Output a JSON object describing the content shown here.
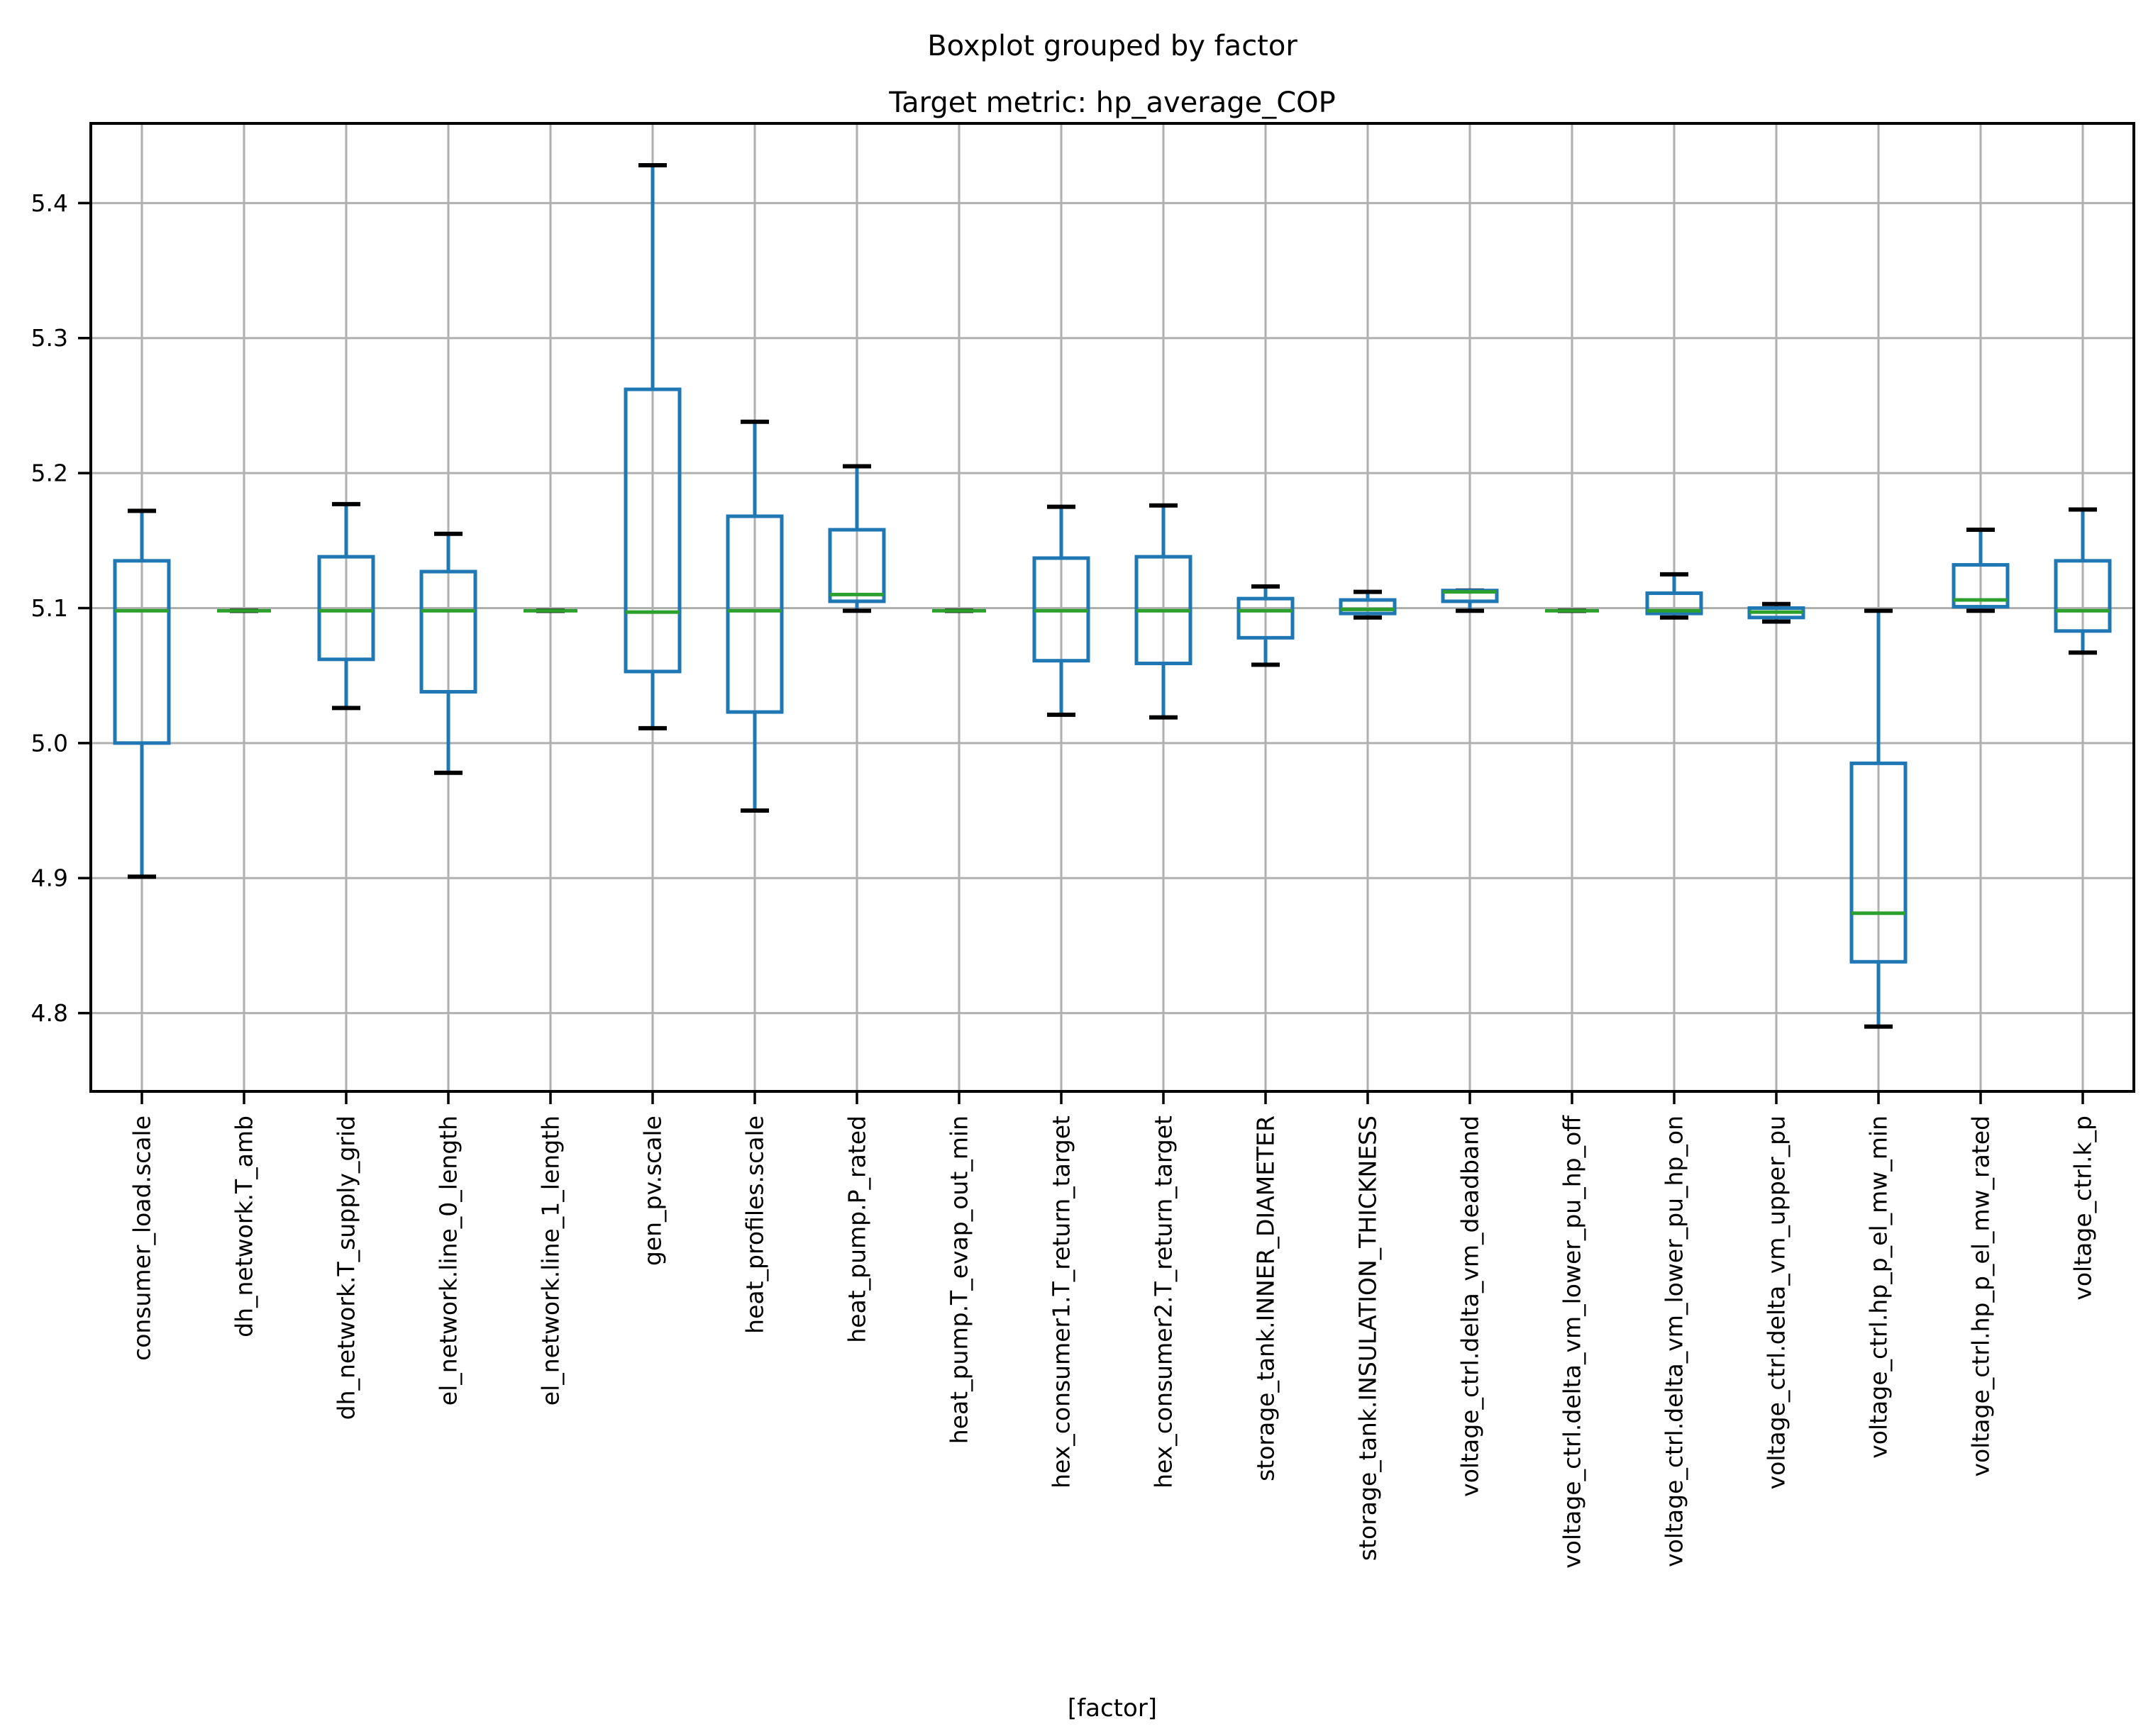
{
  "chart": {
    "suptitle": "Boxplot grouped by factor",
    "title": "Target metric: hp_average_COP",
    "xlabel": "[factor]"
  },
  "colors": {
    "box": "#1f77b4",
    "median": "#2ca02c",
    "cap": "#000000",
    "whisker": "#1f77b4",
    "grid": "#b0b0b0",
    "spine": "#000000",
    "background": "#ffffff"
  },
  "chart_data": {
    "type": "boxplot",
    "title": "Boxplot grouped by factor",
    "subtitle": "Target metric: hp_average_COP",
    "xlabel": "[factor]",
    "ylabel": "",
    "grid": true,
    "ylim": [
      4.742,
      5.459
    ],
    "yticks": [
      4.8,
      4.9,
      5.0,
      5.1,
      5.2,
      5.3,
      5.4
    ],
    "categories": [
      "consumer_load.scale",
      "dh_network.T_amb",
      "dh_network.T_supply_grid",
      "el_network.line_0_length",
      "el_network.line_1_length",
      "gen_pv.scale",
      "heat_profiles.scale",
      "heat_pump.P_rated",
      "heat_pump.T_evap_out_min",
      "hex_consumer1.T_return_target",
      "hex_consumer2.T_return_target",
      "storage_tank.INNER_DIAMETER",
      "storage_tank.INSULATION_THICKNESS",
      "voltage_ctrl.delta_vm_deadband",
      "voltage_ctrl.delta_vm_lower_pu_hp_off",
      "voltage_ctrl.delta_vm_lower_pu_hp_on",
      "voltage_ctrl.delta_vm_upper_pu",
      "voltage_ctrl.hp_p_el_mw_min",
      "voltage_ctrl.hp_p_el_mw_rated",
      "voltage_ctrl.k_p"
    ],
    "boxes": [
      {
        "label": "consumer_load.scale",
        "whislo": 4.901,
        "q1": 5.0,
        "med": 5.098,
        "q3": 5.135,
        "whishi": 5.172
      },
      {
        "label": "dh_network.T_amb",
        "whislo": 5.098,
        "q1": 5.098,
        "med": 5.098,
        "q3": 5.098,
        "whishi": 5.098
      },
      {
        "label": "dh_network.T_supply_grid",
        "whislo": 5.026,
        "q1": 5.062,
        "med": 5.098,
        "q3": 5.138,
        "whishi": 5.177
      },
      {
        "label": "el_network.line_0_length",
        "whislo": 4.978,
        "q1": 5.038,
        "med": 5.098,
        "q3": 5.127,
        "whishi": 5.155
      },
      {
        "label": "el_network.line_1_length",
        "whislo": 5.098,
        "q1": 5.098,
        "med": 5.098,
        "q3": 5.098,
        "whishi": 5.098
      },
      {
        "label": "gen_pv.scale",
        "whislo": 5.011,
        "q1": 5.053,
        "med": 5.097,
        "q3": 5.262,
        "whishi": 5.428
      },
      {
        "label": "heat_profiles.scale",
        "whislo": 4.95,
        "q1": 5.023,
        "med": 5.098,
        "q3": 5.168,
        "whishi": 5.238
      },
      {
        "label": "heat_pump.P_rated",
        "whislo": 5.098,
        "q1": 5.105,
        "med": 5.11,
        "q3": 5.158,
        "whishi": 5.205
      },
      {
        "label": "heat_pump.T_evap_out_min",
        "whislo": 5.098,
        "q1": 5.098,
        "med": 5.098,
        "q3": 5.098,
        "whishi": 5.098
      },
      {
        "label": "hex_consumer1.T_return_target",
        "whislo": 5.021,
        "q1": 5.061,
        "med": 5.098,
        "q3": 5.137,
        "whishi": 5.175
      },
      {
        "label": "hex_consumer2.T_return_target",
        "whislo": 5.019,
        "q1": 5.059,
        "med": 5.098,
        "q3": 5.138,
        "whishi": 5.176
      },
      {
        "label": "storage_tank.INNER_DIAMETER",
        "whislo": 5.058,
        "q1": 5.078,
        "med": 5.098,
        "q3": 5.107,
        "whishi": 5.116
      },
      {
        "label": "storage_tank.INSULATION_THICKNESS",
        "whislo": 5.093,
        "q1": 5.096,
        "med": 5.099,
        "q3": 5.106,
        "whishi": 5.112
      },
      {
        "label": "voltage_ctrl.delta_vm_deadband",
        "whislo": 5.098,
        "q1": 5.105,
        "med": 5.112,
        "q3": 5.113,
        "whishi": 5.113
      },
      {
        "label": "voltage_ctrl.delta_vm_lower_pu_hp_off",
        "whislo": 5.098,
        "q1": 5.098,
        "med": 5.098,
        "q3": 5.098,
        "whishi": 5.098
      },
      {
        "label": "voltage_ctrl.delta_vm_lower_pu_hp_on",
        "whislo": 5.093,
        "q1": 5.096,
        "med": 5.098,
        "q3": 5.111,
        "whishi": 5.125
      },
      {
        "label": "voltage_ctrl.delta_vm_upper_pu",
        "whislo": 5.09,
        "q1": 5.093,
        "med": 5.097,
        "q3": 5.1,
        "whishi": 5.103
      },
      {
        "label": "voltage_ctrl.hp_p_el_mw_min",
        "whislo": 4.79,
        "q1": 4.838,
        "med": 4.874,
        "q3": 4.985,
        "whishi": 5.098
      },
      {
        "label": "voltage_ctrl.hp_p_el_mw_rated",
        "whislo": 5.098,
        "q1": 5.101,
        "med": 5.106,
        "q3": 5.132,
        "whishi": 5.158
      },
      {
        "label": "voltage_ctrl.k_p",
        "whislo": 5.067,
        "q1": 5.083,
        "med": 5.098,
        "q3": 5.135,
        "whishi": 5.173
      }
    ],
    "legend_position": "none"
  }
}
